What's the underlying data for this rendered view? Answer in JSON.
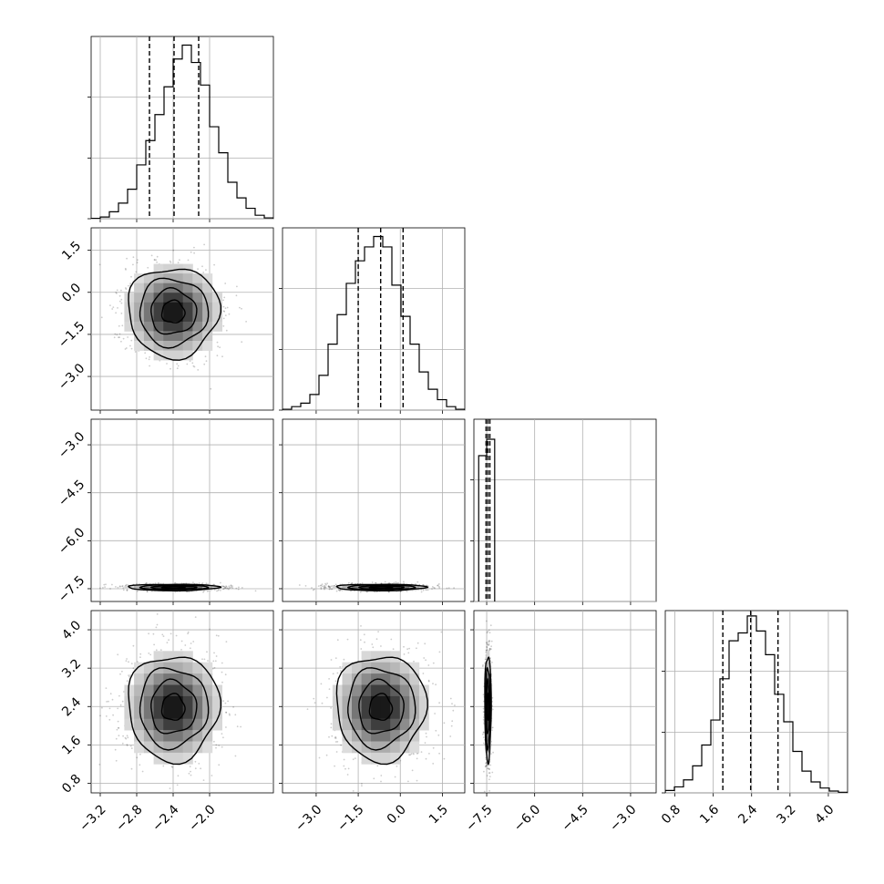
{
  "chart_data": {
    "type": "corner",
    "title": "",
    "grid": true,
    "parameters": [
      {
        "index": 0,
        "range": [
          -3.3,
          -1.3
        ],
        "ticks": [
          -3.2,
          -2.8,
          -2.4,
          -2.0
        ],
        "tick_labels": [
          "−3.2",
          "−2.8",
          "−2.4",
          "−2.0"
        ],
        "quantiles": [
          -2.66,
          -2.39,
          -2.12
        ],
        "show_bottom_labels": true,
        "show_left_labels": false
      },
      {
        "index": 1,
        "range": [
          -4.2,
          2.3
        ],
        "ticks": [
          -3.0,
          -1.5,
          0.0,
          1.5
        ],
        "tick_labels": [
          "−3.0",
          "−1.5",
          "0.0",
          "1.5"
        ],
        "quantiles": [
          -1.5,
          -0.7,
          0.1
        ],
        "show_bottom_labels": true,
        "show_left_labels": true
      },
      {
        "index": 2,
        "range": [
          -7.9,
          -2.2
        ],
        "ticks": [
          -7.5,
          -6.0,
          -4.5,
          -3.0
        ],
        "tick_labels": [
          "−7.5",
          "−6.0",
          "−4.5",
          "−3.0"
        ],
        "quantiles": [
          -7.52,
          -7.46,
          -7.4
        ],
        "show_bottom_labels": true,
        "show_left_labels": true
      },
      {
        "index": 3,
        "range": [
          0.6,
          4.4
        ],
        "ticks": [
          0.8,
          1.6,
          2.4,
          3.2,
          4.0
        ],
        "tick_labels": [
          "0.8",
          "1.6",
          "2.4",
          "3.2",
          "4.0"
        ],
        "quantiles": [
          1.8,
          2.38,
          2.95
        ],
        "show_bottom_labels": true,
        "show_left_labels": true
      }
    ],
    "histograms": [
      {
        "param": 0,
        "bins": 20,
        "ymax": 1.05,
        "heights": [
          0.002,
          0.01,
          0.04,
          0.09,
          0.17,
          0.31,
          0.45,
          0.6,
          0.76,
          0.92,
          1.0,
          0.9,
          0.77,
          0.53,
          0.38,
          0.21,
          0.12,
          0.06,
          0.02,
          0.005
        ]
      },
      {
        "param": 1,
        "bins": 20,
        "ymax": 1.05,
        "heights": [
          0.005,
          0.02,
          0.04,
          0.09,
          0.2,
          0.38,
          0.55,
          0.73,
          0.86,
          0.94,
          1.0,
          0.94,
          0.72,
          0.54,
          0.38,
          0.22,
          0.12,
          0.06,
          0.02,
          0.005
        ]
      },
      {
        "param": 2,
        "edges": [
          -7.75,
          -7.5,
          -7.25
        ],
        "heights": [
          0.8,
          0.89
        ],
        "ymax": 1.0
      }
    ],
    "contours_2d": [
      {
        "x_param": 0,
        "y_param": 1,
        "center": [
          -2.4,
          -0.7
        ],
        "sd": [
          0.25,
          0.8
        ]
      },
      {
        "x_param": 0,
        "y_param": 2,
        "center": [
          -2.4,
          -7.46
        ],
        "sd": [
          0.25,
          0.05
        ]
      },
      {
        "x_param": 1,
        "y_param": 2,
        "center": [
          -0.7,
          -7.46
        ],
        "sd": [
          0.8,
          0.05
        ]
      },
      {
        "x_param": 0,
        "y_param": 3,
        "center": [
          -2.4,
          2.38
        ],
        "sd": [
          0.25,
          0.55
        ]
      },
      {
        "x_param": 1,
        "y_param": 3,
        "center": [
          -0.7,
          2.38
        ],
        "sd": [
          0.8,
          0.55
        ]
      },
      {
        "x_param": 2,
        "y_param": 3,
        "center": [
          -7.46,
          2.38
        ],
        "sd": [
          0.05,
          0.55
        ]
      }
    ],
    "diagonal_ytick_fractions": [
      0.333,
      0.667,
      0.0
    ]
  }
}
